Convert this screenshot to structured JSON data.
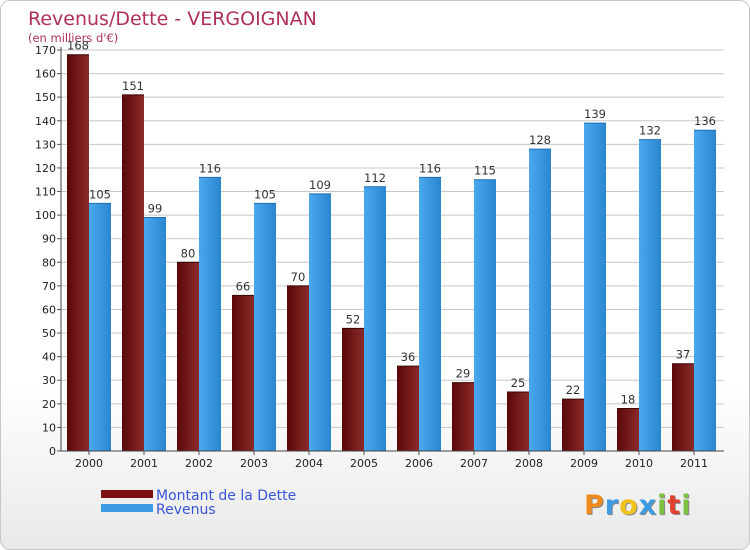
{
  "chart_data": {
    "type": "bar",
    "title": "Revenus/Dette - VERGOIGNAN",
    "subtitle": "(en milliers d'€)",
    "categories": [
      "2000",
      "2001",
      "2002",
      "2003",
      "2004",
      "2005",
      "2006",
      "2007",
      "2008",
      "2009",
      "2010",
      "2011"
    ],
    "series": [
      {
        "name": "Montant de la Dette",
        "color": "#7a1010",
        "values": [
          168,
          151,
          80,
          66,
          70,
          52,
          36,
          29,
          25,
          22,
          18,
          37
        ]
      },
      {
        "name": "Revenus",
        "color": "#3d9be3",
        "values": [
          105,
          99,
          116,
          105,
          109,
          112,
          116,
          115,
          128,
          139,
          132,
          136
        ]
      }
    ],
    "ylim": [
      0,
      170
    ],
    "yticks": [
      0,
      10,
      20,
      30,
      40,
      50,
      60,
      70,
      80,
      90,
      100,
      110,
      120,
      130,
      140,
      150,
      160,
      170
    ],
    "grid": true,
    "legend": "bottom-left"
  },
  "logo": {
    "letters": [
      "P",
      "r",
      "o",
      "x",
      "i",
      "t",
      "i"
    ],
    "colors": [
      "#f08a1c",
      "#3d9be3",
      "#f0c21c",
      "#3d9be3",
      "#7cc242",
      "#e0412e",
      "#7cc242"
    ]
  }
}
